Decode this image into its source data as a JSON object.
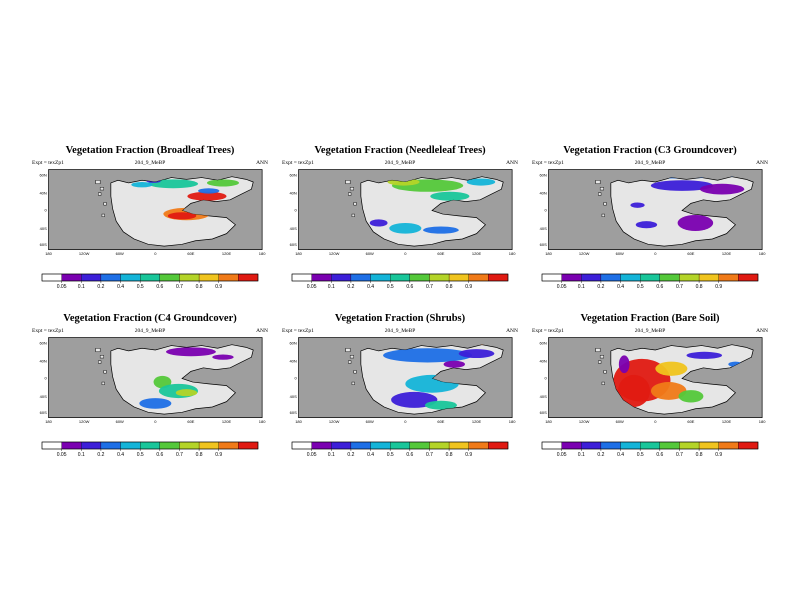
{
  "common": {
    "expt": "Expt = texZp1",
    "run": "204_9_MeBP",
    "period": "ANN",
    "lat_labels": [
      "60N",
      "40N",
      "0",
      "40S",
      "60S"
    ],
    "lon_labels": [
      "180",
      "120W",
      "60W",
      "0",
      "60E",
      "120E",
      "180"
    ],
    "ocean_color": "#9e9e9e",
    "land_color": "#e6e6e6"
  },
  "chart_data": [
    {
      "type": "heatmap",
      "title": "Vegetation Fraction (Broadleaf Trees)",
      "colorbar_ticks": [
        "0.05",
        "0.1",
        "0.2",
        "0.4",
        "0.5",
        "0.6",
        "0.7",
        "0.8",
        "0.9"
      ],
      "colorbar_range": [
        0,
        1
      ]
    },
    {
      "type": "heatmap",
      "title": "Vegetation Fraction (Needleleaf Trees)",
      "colorbar_ticks": [
        "0.05",
        "0.1",
        "0.2",
        "0.4",
        "0.5",
        "0.6",
        "0.7",
        "0.8",
        "0.9"
      ],
      "colorbar_range": [
        0,
        1
      ]
    },
    {
      "type": "heatmap",
      "title": "Vegetation Fraction (C3 Groundcover)",
      "colorbar_ticks": [
        "0.05",
        "0.1",
        "0.2",
        "0.4",
        "0.5",
        "0.6",
        "0.7",
        "0.8",
        "0.9"
      ],
      "colorbar_range": [
        0,
        1
      ]
    },
    {
      "type": "heatmap",
      "title": "Vegetation Fraction (C4 Groundcover)",
      "colorbar_ticks": [
        "0.05",
        "0.1",
        "0.2",
        "0.4",
        "0.5",
        "0.6",
        "0.7",
        "0.8",
        "0.9"
      ],
      "colorbar_range": [
        0,
        1
      ]
    },
    {
      "type": "heatmap",
      "title": "Vegetation Fraction (Shrubs)",
      "colorbar_ticks": [
        "0.05",
        "0.1",
        "0.2",
        "0.4",
        "0.5",
        "0.6",
        "0.7",
        "0.8",
        "0.9"
      ],
      "colorbar_range": [
        0,
        1
      ]
    },
    {
      "type": "heatmap",
      "title": "Vegetation Fraction (Bare Soil)",
      "colorbar_ticks": [
        "0.05",
        "0.1",
        "0.2",
        "0.4",
        "0.5",
        "0.6",
        "0.7",
        "0.8",
        "0.9"
      ],
      "colorbar_range": [
        0,
        1
      ]
    }
  ],
  "colormap": [
    "#7a00b0",
    "#3c1fd8",
    "#1e6fe6",
    "#14b4d8",
    "#19c69a",
    "#54c83a",
    "#b4d428",
    "#f0c41e",
    "#f07a18",
    "#e01a12"
  ]
}
